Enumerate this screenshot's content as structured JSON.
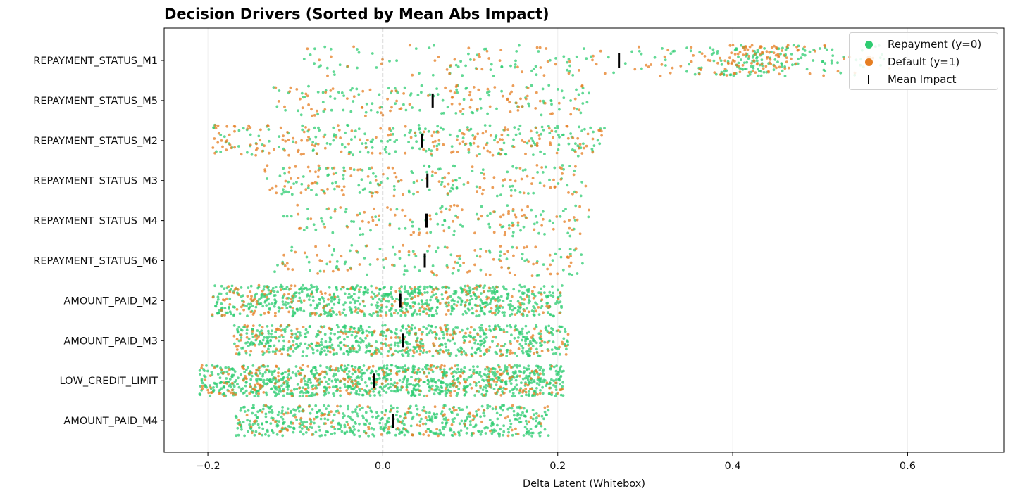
{
  "chart_data": {
    "type": "scatter",
    "title": "Decision Drivers (Sorted by Mean Abs Impact)",
    "xlabel": "Delta Latent (Whitebox)",
    "ylabel": "",
    "xlim": [
      -0.25,
      0.71
    ],
    "xticks": [
      -0.2,
      0.0,
      0.2,
      0.4,
      0.6
    ],
    "xtick_labels": [
      "−0.2",
      "0.0",
      "0.2",
      "0.4",
      "0.6"
    ],
    "zero_line": true,
    "grid": "vertical",
    "legend_position": "top-right",
    "legend": [
      {
        "label": "Repayment (y=0)",
        "color": "#2ecc71",
        "marker": "dot"
      },
      {
        "label": "Default (y=1)",
        "color": "#e67e22",
        "marker": "dot"
      },
      {
        "label": "Mean Impact",
        "color": "#000000",
        "marker": "bar"
      }
    ],
    "features": [
      {
        "name": "REPAYMENT_STATUS_M1",
        "mean": 0.27,
        "min": -0.09,
        "max": 0.58,
        "n_repay": 230,
        "n_default": 170
      },
      {
        "name": "REPAYMENT_STATUS_M5",
        "mean": 0.057,
        "min": -0.125,
        "max": 0.24,
        "n_repay": 110,
        "n_default": 90
      },
      {
        "name": "REPAYMENT_STATUS_M2",
        "mean": 0.045,
        "min": -0.195,
        "max": 0.255,
        "n_repay": 200,
        "n_default": 170
      },
      {
        "name": "REPAYMENT_STATUS_M3",
        "mean": 0.051,
        "min": -0.135,
        "max": 0.235,
        "n_repay": 120,
        "n_default": 110
      },
      {
        "name": "REPAYMENT_STATUS_M4",
        "mean": 0.05,
        "min": -0.115,
        "max": 0.24,
        "n_repay": 90,
        "n_default": 80
      },
      {
        "name": "REPAYMENT_STATUS_M6",
        "mean": 0.048,
        "min": -0.125,
        "max": 0.233,
        "n_repay": 90,
        "n_default": 80
      },
      {
        "name": "AMOUNT_PAID_M2",
        "mean": 0.02,
        "min": -0.195,
        "max": 0.205,
        "n_repay": 700,
        "n_default": 180
      },
      {
        "name": "AMOUNT_PAID_M3",
        "mean": 0.023,
        "min": -0.17,
        "max": 0.213,
        "n_repay": 600,
        "n_default": 180
      },
      {
        "name": "LOW_CREDIT_LIMIT",
        "mean": -0.01,
        "min": -0.21,
        "max": 0.207,
        "n_repay": 900,
        "n_default": 250
      },
      {
        "name": "AMOUNT_PAID_M4",
        "mean": 0.012,
        "min": -0.17,
        "max": 0.19,
        "n_repay": 520,
        "n_default": 110
      }
    ]
  },
  "colors": {
    "repay": "#2ecc71",
    "default": "#e67e22",
    "mean": "#000000",
    "zero_line": "#888888",
    "grid": "#eeeeee"
  }
}
